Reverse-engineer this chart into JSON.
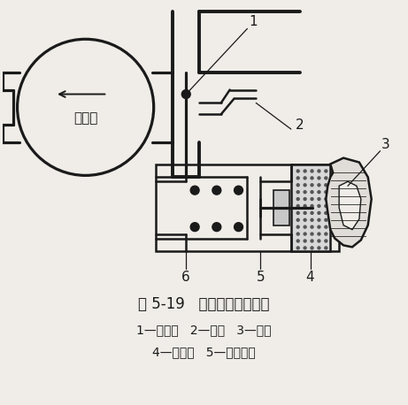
{
  "title": "图 5-19   石蜡式怠速调节器",
  "caption_line1": "1—节气门   2—软管   3—水套",
  "caption_line2": "4—石蜡体   5—控制活塞",
  "label_1": "1",
  "label_2": "2",
  "label_3": "3",
  "label_4": "4",
  "label_5": "5",
  "label_6": "6",
  "intake_label": "进气管",
  "bg_color": "#f0ede8",
  "line_color": "#1a1a1a",
  "title_fontsize": 12,
  "caption_fontsize": 10
}
